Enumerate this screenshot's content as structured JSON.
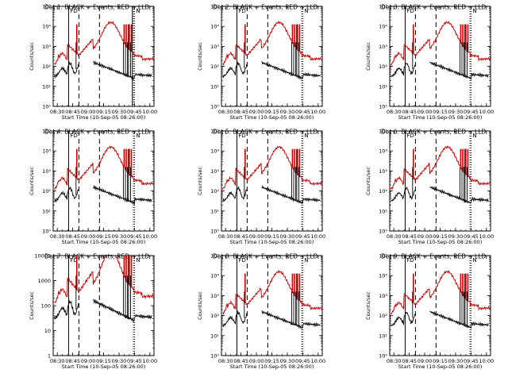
{
  "figure": {
    "panel_title_template": "Det {n}: BLACK = Events, RED = LLD",
    "xlabel": "Start Time (10-Sep-05 08:26:00)",
    "ylabel": "Counts/sec",
    "x_tick_labels": [
      "08:30",
      "08:45",
      "09:00",
      "09:15",
      "09:30",
      "09:45",
      "10:00"
    ],
    "y_tick_labels_log": [
      "10⁰",
      "10¹",
      "10²",
      "10³",
      "10⁴",
      "10⁵"
    ],
    "y_tick_labels_plain": [
      "1",
      "10",
      "100",
      "1000",
      "10000"
    ],
    "colors": {
      "events": "#000000",
      "lld": "#cc0000",
      "axes": "#000000"
    },
    "marker_labels": [
      "F",
      "D",
      "N"
    ]
  },
  "chart_data": [
    {
      "detector": 1,
      "title": "Det 1: BLACK = Events, RED = LLD",
      "type": "line",
      "xlabel": "Start Time (10-Sep-05 08:26:00)",
      "ylabel": "Counts/sec",
      "xlim": [
        "08:26",
        "10:04"
      ],
      "ylim": [
        1,
        100000
      ],
      "yscale": "log",
      "y_tick_style": "power",
      "vlines_solid": [
        "08:41",
        "09:43"
      ],
      "vlines_dashed": [
        "08:51",
        "09:11"
      ],
      "vlines_dotted": [
        "09:44",
        "09:45"
      ],
      "series": [
        {
          "name": "Events",
          "color": "#000000"
        },
        {
          "name": "LLD",
          "color": "#cc0000"
        }
      ]
    },
    {
      "detector": 2,
      "title": "Det 2: BLACK = Events, RED = LLD",
      "type": "line",
      "xlabel": "Start Time (10-Sep-05 08:26:00)",
      "ylabel": "Counts/sec",
      "xlim": [
        "08:26",
        "10:04"
      ],
      "ylim": [
        1,
        100000
      ],
      "yscale": "log",
      "y_tick_style": "power",
      "vlines_solid": [
        "08:41"
      ],
      "vlines_dashed": [
        "08:51",
        "09:11"
      ],
      "vlines_dotted": [
        "09:44",
        "09:45"
      ],
      "series": [
        {
          "name": "Events",
          "color": "#000000"
        },
        {
          "name": "LLD",
          "color": "#cc0000"
        }
      ]
    },
    {
      "detector": 3,
      "title": "Det 3: BLACK = Events, RED = LLD",
      "type": "line",
      "xlabel": "Start Time (10-Sep-05 08:26:00)",
      "ylabel": "Counts/sec",
      "xlim": [
        "08:26",
        "10:04"
      ],
      "ylim": [
        1,
        100000
      ],
      "yscale": "log",
      "y_tick_style": "power",
      "vlines_solid": [
        "08:41"
      ],
      "vlines_dashed": [
        "08:51",
        "09:11"
      ],
      "vlines_dotted": [
        "09:44",
        "09:45"
      ],
      "series": [
        {
          "name": "Events",
          "color": "#000000"
        },
        {
          "name": "LLD",
          "color": "#cc0000"
        }
      ]
    },
    {
      "detector": 4,
      "title": "Det 4: BLACK = Events, RED = LLD",
      "type": "line",
      "xlabel": "Start Time (10-Sep-05 08:26:00)",
      "ylabel": "Counts/sec",
      "xlim": [
        "08:26",
        "10:04"
      ],
      "ylim": [
        1,
        100000
      ],
      "yscale": "log",
      "y_tick_style": "power",
      "vlines_solid": [
        "08:41"
      ],
      "vlines_dashed": [
        "08:51",
        "09:11"
      ],
      "vlines_dotted": [
        "09:44",
        "09:45"
      ],
      "series": [
        {
          "name": "Events",
          "color": "#000000"
        },
        {
          "name": "LLD",
          "color": "#cc0000"
        }
      ]
    },
    {
      "detector": 5,
      "title": "Det 5: BLACK = Events, RED = LLD",
      "type": "line",
      "xlabel": "Start Time (10-Sep-05 08:26:00)",
      "ylabel": "Counts/sec",
      "xlim": [
        "08:26",
        "10:04"
      ],
      "ylim": [
        1,
        100000
      ],
      "yscale": "log",
      "y_tick_style": "power",
      "vlines_solid": [
        "08:41"
      ],
      "vlines_dashed": [
        "08:51",
        "09:11"
      ],
      "vlines_dotted": [
        "09:44",
        "09:45"
      ],
      "series": [
        {
          "name": "Events",
          "color": "#000000"
        },
        {
          "name": "LLD",
          "color": "#cc0000"
        }
      ]
    },
    {
      "detector": 6,
      "title": "Det 6: BLACK = Events, RED = LLD",
      "type": "line",
      "xlabel": "Start Time (10-Sep-05 08:26:00)",
      "ylabel": "Counts/sec",
      "xlim": [
        "08:26",
        "10:04"
      ],
      "ylim": [
        1,
        100000
      ],
      "yscale": "log",
      "y_tick_style": "power",
      "vlines_solid": [
        "08:41"
      ],
      "vlines_dashed": [
        "08:51",
        "09:11"
      ],
      "vlines_dotted": [
        "09:44",
        "09:45"
      ],
      "series": [
        {
          "name": "Events",
          "color": "#000000"
        },
        {
          "name": "LLD",
          "color": "#cc0000"
        }
      ]
    },
    {
      "detector": 7,
      "title": "Det 7: BLACK = Events, RED = LLD",
      "type": "line",
      "xlabel": "Start Time (10-Sep-05 08:26:00)",
      "ylabel": "Counts/sec",
      "xlim": [
        "08:26",
        "10:04"
      ],
      "ylim": [
        1,
        10000
      ],
      "yscale": "log",
      "y_tick_style": "plain",
      "vlines_solid": [
        "08:41"
      ],
      "vlines_dashed": [
        "08:51",
        "09:11"
      ],
      "vlines_dotted": [
        "09:44",
        "09:45"
      ],
      "series": [
        {
          "name": "Events",
          "color": "#000000"
        },
        {
          "name": "LLD",
          "color": "#cc0000"
        }
      ]
    },
    {
      "detector": 8,
      "title": "Det 8: BLACK = Events, RED = LLD",
      "type": "line",
      "xlabel": "Start Time (10-Sep-05 08:26:00)",
      "ylabel": "Counts/sec",
      "xlim": [
        "08:26",
        "10:04"
      ],
      "ylim": [
        1,
        100000
      ],
      "yscale": "log",
      "y_tick_style": "power",
      "vlines_solid": [
        "08:41"
      ],
      "vlines_dashed": [
        "08:51",
        "09:11"
      ],
      "vlines_dotted": [
        "09:44",
        "09:45"
      ],
      "series": [
        {
          "name": "Events",
          "color": "#000000"
        },
        {
          "name": "LLD",
          "color": "#cc0000"
        }
      ]
    },
    {
      "detector": 9,
      "title": "Det 9: BLACK = Events, RED = LLD",
      "type": "line",
      "xlabel": "Start Time (10-Sep-05 08:26:00)",
      "ylabel": "Counts/sec",
      "xlim": [
        "08:26",
        "10:04"
      ],
      "ylim": [
        1,
        100000
      ],
      "yscale": "log",
      "y_tick_style": "power",
      "vlines_solid": [
        "08:41"
      ],
      "vlines_dashed": [
        "08:51",
        "09:11"
      ],
      "vlines_dotted": [
        "09:44",
        "09:45"
      ],
      "series": [
        {
          "name": "Events",
          "color": "#000000"
        },
        {
          "name": "LLD",
          "color": "#cc0000"
        }
      ]
    }
  ]
}
